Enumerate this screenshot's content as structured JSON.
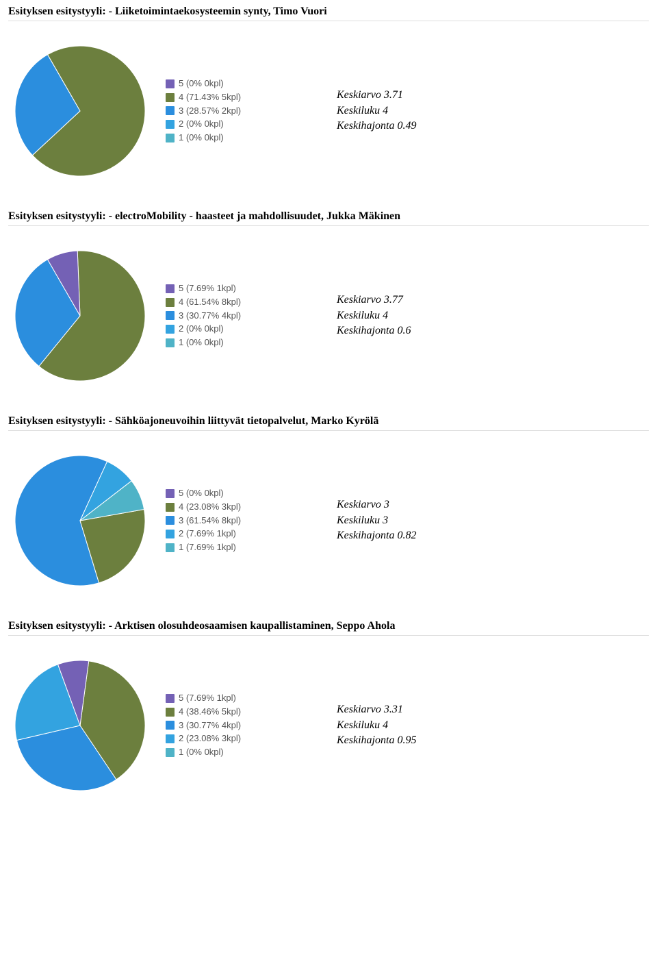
{
  "colors": {
    "c5": "#7461b5",
    "c4": "#6c7f3e",
    "c3": "#2b8ede",
    "c2": "#33a3e0",
    "c1": "#4fb3c7",
    "text_muted": "#555555",
    "border": "#dddddd",
    "bg": "#ffffff"
  },
  "sections": [
    {
      "title": "Esityksen esitystyyli: - Liiketoimintaekosysteemin synty, Timo Vuori",
      "chart": {
        "type": "pie",
        "rotation_deg": -30,
        "segments": [
          {
            "key": "5",
            "pct": 0,
            "kpl": 0,
            "color": "#7461b5"
          },
          {
            "key": "4",
            "pct": 71.43,
            "kpl": 5,
            "color": "#6c7f3e"
          },
          {
            "key": "3",
            "pct": 28.57,
            "kpl": 2,
            "color": "#2b8ede"
          },
          {
            "key": "2",
            "pct": 0,
            "kpl": 0,
            "color": "#33a3e0"
          },
          {
            "key": "1",
            "pct": 0,
            "kpl": 0,
            "color": "#4fb3c7"
          }
        ]
      },
      "stats": {
        "keskiarvo": "Keskiarvo 3.71",
        "keskiluku": "Keskiluku 4",
        "keskihajonta": "Keskihajonta 0.49"
      }
    },
    {
      "title": "Esityksen esitystyyli: - electroMobility - haasteet ja mahdollisuudet, Jukka Mäkinen",
      "chart": {
        "type": "pie",
        "rotation_deg": -30,
        "segments": [
          {
            "key": "5",
            "pct": 7.69,
            "kpl": 1,
            "color": "#7461b5"
          },
          {
            "key": "4",
            "pct": 61.54,
            "kpl": 8,
            "color": "#6c7f3e"
          },
          {
            "key": "3",
            "pct": 30.77,
            "kpl": 4,
            "color": "#2b8ede"
          },
          {
            "key": "2",
            "pct": 0,
            "kpl": 0,
            "color": "#33a3e0"
          },
          {
            "key": "1",
            "pct": 0,
            "kpl": 0,
            "color": "#4fb3c7"
          }
        ]
      },
      "stats": {
        "keskiarvo": "Keskiarvo 3.77",
        "keskiluku": "Keskiluku 4",
        "keskihajonta": "Keskihajonta 0.6"
      }
    },
    {
      "title": "Esityksen esitystyyli: - Sähköajoneuvoihin liittyvät tietopalvelut, Marko Kyrölä",
      "chart": {
        "type": "pie",
        "rotation_deg": 80,
        "segments": [
          {
            "key": "5",
            "pct": 0,
            "kpl": 0,
            "color": "#7461b5"
          },
          {
            "key": "4",
            "pct": 23.08,
            "kpl": 3,
            "color": "#6c7f3e"
          },
          {
            "key": "3",
            "pct": 61.54,
            "kpl": 8,
            "color": "#2b8ede"
          },
          {
            "key": "2",
            "pct": 7.69,
            "kpl": 1,
            "color": "#33a3e0"
          },
          {
            "key": "1",
            "pct": 7.69,
            "kpl": 1,
            "color": "#4fb3c7"
          }
        ]
      },
      "stats": {
        "keskiarvo": "Keskiarvo 3",
        "keskiluku": "Keskiluku 3",
        "keskihajonta": "Keskihajonta 0.82"
      }
    },
    {
      "title": "Esityksen esitystyyli: - Arktisen olosuhdeosaamisen kaupallistaminen, Seppo Ahola",
      "chart": {
        "type": "pie",
        "rotation_deg": -20,
        "segments": [
          {
            "key": "5",
            "pct": 7.69,
            "kpl": 1,
            "color": "#7461b5"
          },
          {
            "key": "4",
            "pct": 38.46,
            "kpl": 5,
            "color": "#6c7f3e"
          },
          {
            "key": "3",
            "pct": 30.77,
            "kpl": 4,
            "color": "#2b8ede"
          },
          {
            "key": "2",
            "pct": 23.08,
            "kpl": 3,
            "color": "#33a3e0"
          },
          {
            "key": "1",
            "pct": 0,
            "kpl": 0,
            "color": "#4fb3c7"
          }
        ]
      },
      "stats": {
        "keskiarvo": "Keskiarvo 3.31",
        "keskiluku": "Keskiluku 4",
        "keskihajonta": "Keskihajonta 0.95"
      }
    }
  ]
}
